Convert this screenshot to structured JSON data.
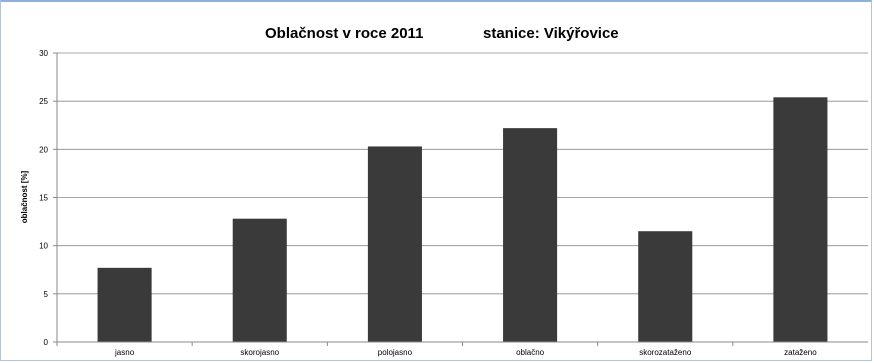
{
  "chart_data": {
    "type": "bar",
    "title": "Oblačnost v roce 2011",
    "subtitle": "stanice: Vikýřovice",
    "xlabel": "",
    "ylabel": "oblačnost [%]",
    "categories": [
      "jasno",
      "skorojasno",
      "polojasno",
      "oblačno",
      "skorozataženo",
      "zataženo"
    ],
    "values": [
      7.7,
      12.8,
      20.3,
      22.2,
      11.5,
      25.4
    ],
    "ylim": [
      0,
      30
    ],
    "yticks": [
      "0",
      "5",
      "10",
      "15",
      "20",
      "25",
      "30"
    ],
    "grid": true,
    "legend": "none",
    "bar_color": "#3a3a3a"
  }
}
